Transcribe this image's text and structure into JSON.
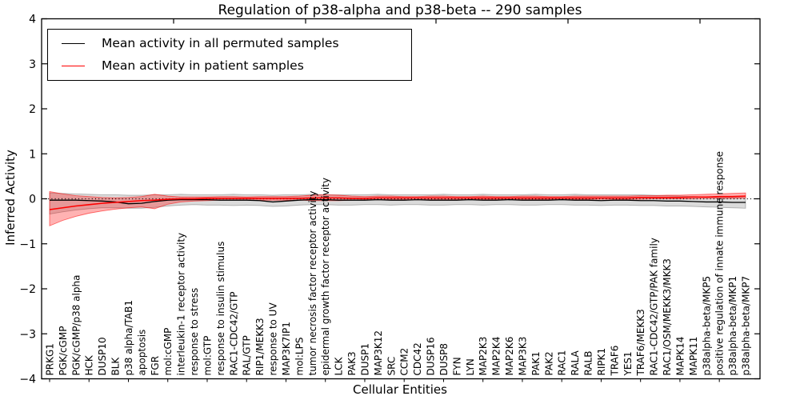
{
  "title": "Regulation of p38-alpha and p38-beta -- 290 samples",
  "legend": {
    "items": [
      {
        "label": "Mean activity in all permuted samples",
        "color": "#000000"
      },
      {
        "label": "Mean activity in patient samples",
        "color": "#ff0000"
      }
    ]
  },
  "axes": {
    "ylabel": "Inferred Activity",
    "xlabel": "Cellular Entities"
  },
  "chart_data": {
    "type": "line",
    "title": "Regulation of p38-alpha and p38-beta -- 290 samples",
    "xlabel": "Cellular Entities",
    "ylabel": "Inferred Activity",
    "ylim": [
      -4,
      4
    ],
    "yticks": [
      4,
      3,
      2,
      1,
      0,
      -1,
      -2,
      -3,
      -4
    ],
    "zero_line_style": "dotted",
    "grid": false,
    "legend_position": "upper left",
    "samples_count": "290 samples",
    "categories": [
      "PRKG1",
      "PGK/cGMP",
      "PGK/cGMP/p38 alpha",
      "HCK",
      "DUSP10",
      "BLK",
      "p38 alpha/TAB1",
      "apoptosis",
      "FGR",
      "mol:cGMP",
      "interleukin-1 receptor activity",
      "response to stress",
      "mol:GTP",
      "response to insulin stimulus",
      "RAC1-CDC42/GTP",
      "RAL/GTP",
      "RIP1/MEKK3",
      "response to UV",
      "MAP3K7IP1",
      "mol:LPS",
      "tumor necrosis factor receptor activity",
      "epidermal growth factor receptor activity",
      "LCK",
      "PAK3",
      "DUSP1",
      "MAP3K12",
      "SRC",
      "CCM2",
      "CDC42",
      "DUSP16",
      "DUSP8",
      "FYN",
      "LYN",
      "MAP2K3",
      "MAP2K4",
      "MAP2K6",
      "MAP3K3",
      "PAK1",
      "PAK2",
      "RAC1",
      "RALA",
      "RALB",
      "RIPK1",
      "TRAF6",
      "YES1",
      "TRAF6/MEKK3",
      "RAC1-CDC42/GTP/PAK family",
      "RAC1/OSM/MEKK3/MKK3",
      "MAPK14",
      "MAPK11",
      "p38alpha-beta/MKP5",
      "positive regulation of innate immune response",
      "p38alpha-beta/MKP1",
      "p38alpha-beta/MKP7"
    ],
    "series": [
      {
        "name": "Mean activity in all permuted samples",
        "color": "#000000",
        "band_fill": "rgba(0,0,0,0.14)",
        "band_stroke": "rgba(0,0,0,0.25)",
        "values": [
          -0.03,
          -0.03,
          -0.03,
          -0.04,
          -0.05,
          -0.07,
          -0.11,
          -0.1,
          -0.06,
          -0.03,
          -0.02,
          -0.02,
          -0.02,
          -0.03,
          -0.03,
          -0.03,
          -0.04,
          -0.07,
          -0.05,
          -0.03,
          -0.02,
          -0.02,
          -0.03,
          -0.03,
          -0.03,
          -0.02,
          -0.03,
          -0.03,
          -0.02,
          -0.03,
          -0.03,
          -0.03,
          -0.02,
          -0.03,
          -0.03,
          -0.02,
          -0.03,
          -0.03,
          -0.03,
          -0.02,
          -0.03,
          -0.03,
          -0.04,
          -0.03,
          -0.03,
          -0.04,
          -0.04,
          -0.05,
          -0.05,
          -0.06,
          -0.07,
          -0.07,
          -0.08,
          -0.08
        ],
        "band_upper": [
          0.13,
          0.12,
          0.11,
          0.1,
          0.09,
          0.09,
          0.08,
          0.08,
          0.09,
          0.09,
          0.1,
          0.09,
          0.09,
          0.09,
          0.1,
          0.09,
          0.09,
          0.08,
          0.09,
          0.09,
          0.1,
          0.09,
          0.09,
          0.09,
          0.09,
          0.1,
          0.09,
          0.09,
          0.09,
          0.09,
          0.1,
          0.09,
          0.09,
          0.1,
          0.09,
          0.09,
          0.09,
          0.1,
          0.09,
          0.09,
          0.1,
          0.09,
          0.09,
          0.09,
          0.09,
          0.09,
          0.08,
          0.07,
          0.06,
          0.05,
          0.04,
          0.03,
          0.03,
          0.03
        ],
        "band_lower": [
          -0.34,
          -0.29,
          -0.25,
          -0.22,
          -0.2,
          -0.2,
          -0.21,
          -0.21,
          -0.19,
          -0.16,
          -0.14,
          -0.13,
          -0.14,
          -0.14,
          -0.15,
          -0.14,
          -0.15,
          -0.17,
          -0.16,
          -0.14,
          -0.13,
          -0.13,
          -0.14,
          -0.14,
          -0.13,
          -0.13,
          -0.14,
          -0.13,
          -0.13,
          -0.14,
          -0.14,
          -0.13,
          -0.13,
          -0.14,
          -0.13,
          -0.13,
          -0.14,
          -0.14,
          -0.13,
          -0.13,
          -0.14,
          -0.14,
          -0.15,
          -0.14,
          -0.14,
          -0.15,
          -0.15,
          -0.16,
          -0.16,
          -0.17,
          -0.18,
          -0.19,
          -0.2,
          -0.21
        ]
      },
      {
        "name": "Mean activity in patient samples",
        "color": "#ff0000",
        "band_fill": "rgba(255,0,0,0.30)",
        "band_stroke": "rgba(255,0,0,0.55)",
        "values": [
          -0.24,
          -0.2,
          -0.16,
          -0.13,
          -0.1,
          -0.08,
          -0.06,
          -0.04,
          -0.03,
          -0.01,
          0.0,
          0.0,
          0.01,
          0.01,
          0.01,
          0.01,
          0.01,
          0.01,
          0.01,
          0.01,
          0.02,
          0.02,
          0.02,
          0.01,
          0.01,
          0.02,
          0.02,
          0.02,
          0.02,
          0.02,
          0.02,
          0.02,
          0.02,
          0.02,
          0.02,
          0.02,
          0.02,
          0.02,
          0.02,
          0.02,
          0.02,
          0.02,
          0.02,
          0.02,
          0.02,
          0.03,
          0.03,
          0.03,
          0.03,
          0.04,
          0.04,
          0.05,
          0.05,
          0.06
        ],
        "band_upper": [
          0.16,
          0.11,
          0.07,
          0.05,
          0.03,
          0.02,
          0.03,
          0.05,
          0.1,
          0.06,
          0.04,
          0.04,
          0.04,
          0.05,
          0.05,
          0.04,
          0.05,
          0.05,
          0.05,
          0.06,
          0.08,
          0.09,
          0.08,
          0.06,
          0.05,
          0.06,
          0.06,
          0.05,
          0.05,
          0.06,
          0.06,
          0.05,
          0.05,
          0.06,
          0.05,
          0.05,
          0.06,
          0.06,
          0.05,
          0.05,
          0.06,
          0.06,
          0.06,
          0.06,
          0.06,
          0.07,
          0.07,
          0.08,
          0.08,
          0.09,
          0.1,
          0.11,
          0.12,
          0.13
        ],
        "band_lower": [
          -0.6,
          -0.48,
          -0.39,
          -0.32,
          -0.27,
          -0.23,
          -0.2,
          -0.18,
          -0.22,
          -0.12,
          -0.07,
          -0.05,
          -0.04,
          -0.03,
          -0.03,
          -0.03,
          -0.03,
          -0.03,
          -0.03,
          -0.03,
          -0.04,
          -0.04,
          -0.04,
          -0.03,
          -0.02,
          -0.02,
          -0.02,
          -0.02,
          -0.02,
          -0.02,
          -0.02,
          -0.02,
          -0.01,
          -0.01,
          -0.01,
          -0.01,
          -0.01,
          -0.01,
          -0.01,
          -0.01,
          -0.01,
          -0.01,
          -0.01,
          -0.01,
          -0.01,
          -0.01,
          0.0,
          0.0,
          0.0,
          0.0,
          0.01,
          0.01,
          0.01,
          0.02
        ]
      }
    ]
  }
}
